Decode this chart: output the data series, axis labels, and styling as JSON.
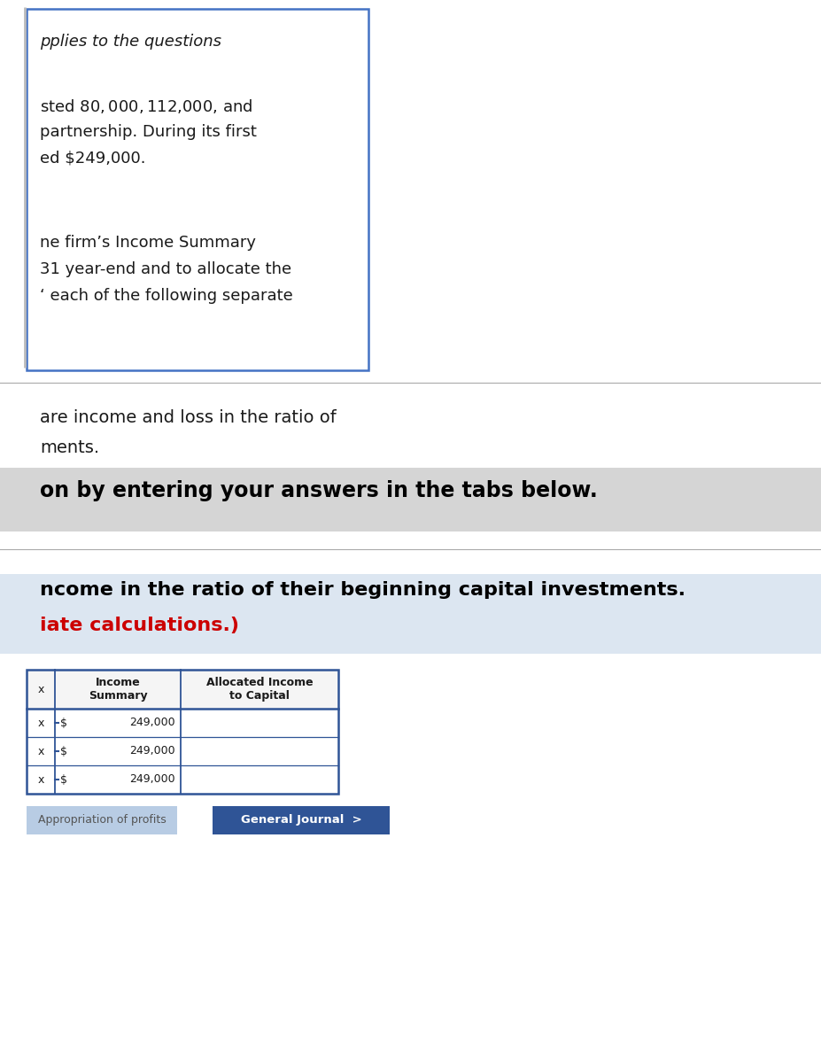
{
  "bg_color": "#ffffff",
  "dark_text": "#1a1a1a",
  "top_box_border_color": "#4472C4",
  "italic_line": "pplies to the questions",
  "body_lines_1": [
    "sted $80,000, $112,000, and",
    "partnership. During its first",
    "ed $249,000."
  ],
  "body_lines_2": [
    "ne firm’s Income Summary",
    "31 year-end and to allocate the",
    "‘ each of the following separate"
  ],
  "ratio_lines": [
    "are income and loss in the ratio of",
    "ments."
  ],
  "gray_banner_text": "on by entering your answers in the tabs below.",
  "gray_banner_color": "#d5d5d5",
  "blue_banner_color": "#dce6f1",
  "blue_banner_text1": "ncome in the ratio of their beginning capital investments.",
  "blue_banner_text2": "iate calculations.)",
  "blue_banner_text2_color": "#cc0000",
  "col_header1": "Income\nSummary",
  "col_header2": "Allocated Income\nto Capital",
  "row_values": [
    "249,000",
    "249,000",
    "249,000"
  ],
  "table_border_color": "#2F5496",
  "btn1_text": "Appropriation of profits",
  "btn1_bg": "#b8cce4",
  "btn1_text_color": "#555555",
  "btn2_text": "General Journal  >",
  "btn2_bg": "#2F5496",
  "btn2_text_color": "#ffffff"
}
